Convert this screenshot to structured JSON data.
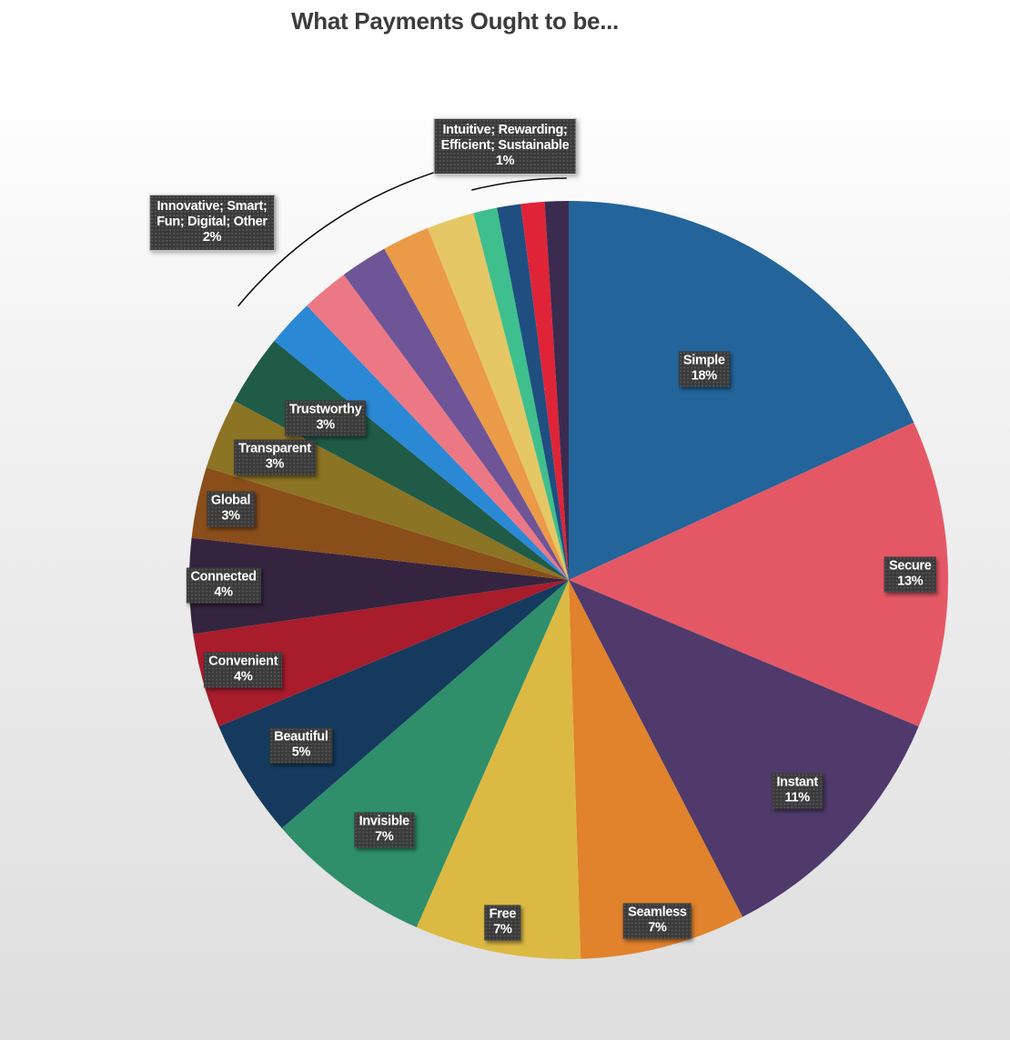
{
  "chart_data": {
    "type": "pie",
    "title": "What Payments Ought to be...",
    "slices": [
      {
        "name": "Simple",
        "label": "Simple",
        "value_label": "18%",
        "value": 18,
        "color": "#23649a"
      },
      {
        "name": "Secure",
        "label": "Secure",
        "value_label": "13%",
        "value": 13,
        "color": "#e45866"
      },
      {
        "name": "Instant",
        "label": "Instant",
        "value_label": "11%",
        "value": 11,
        "color": "#4f3a6b"
      },
      {
        "name": "Seamless",
        "label": "Seamless",
        "value_label": "7%",
        "value": 7,
        "color": "#e1822d"
      },
      {
        "name": "Free",
        "label": "Free",
        "value_label": "7%",
        "value": 7,
        "color": "#dcb943"
      },
      {
        "name": "Invisible",
        "label": "Invisible",
        "value_label": "7%",
        "value": 7,
        "color": "#2f8f6b"
      },
      {
        "name": "Beautiful",
        "label": "Beautiful",
        "value_label": "5%",
        "value": 5,
        "color": "#163a5e"
      },
      {
        "name": "Convenient",
        "label": "Convenient",
        "value_label": "4%",
        "value": 4,
        "color": "#a81c2c"
      },
      {
        "name": "Connected",
        "label": "Connected",
        "value_label": "4%",
        "value": 4,
        "color": "#35243f"
      },
      {
        "name": "Global",
        "label": "Global",
        "value_label": "3%",
        "value": 3,
        "color": "#8a4e1a"
      },
      {
        "name": "Transparent",
        "label": "Transparent",
        "value_label": "3%",
        "value": 3,
        "color": "#8c7425"
      },
      {
        "name": "Trustworthy",
        "label": "Trustworthy",
        "value_label": "3%",
        "value": 3,
        "color": "#1f5b47"
      },
      {
        "name": "Innovative",
        "value": 2,
        "color": "#2b88d4"
      },
      {
        "name": "Smart",
        "value": 2,
        "color": "#ec7885"
      },
      {
        "name": "Fun",
        "value": 2,
        "color": "#6e5597"
      },
      {
        "name": "Digital",
        "value": 2,
        "color": "#eb9a48"
      },
      {
        "name": "Other",
        "value": 2,
        "color": "#e5c865"
      },
      {
        "name": "Intuitive",
        "value": 1,
        "color": "#3fbf8d"
      },
      {
        "name": "Rewarding",
        "value": 1,
        "color": "#1e4f80"
      },
      {
        "name": "Efficient",
        "value": 1,
        "color": "#df2438"
      },
      {
        "name": "Sustainable",
        "value": 1,
        "color": "#3b2b4f"
      }
    ],
    "group_labels": [
      {
        "names": [
          "Innovative; Smart;",
          "Fun; Digital; Other"
        ],
        "value_label": "2%",
        "slices": [
          "Innovative",
          "Smart",
          "Fun",
          "Digital",
          "Other"
        ]
      },
      {
        "names": [
          "Intuitive; Rewarding;",
          "Efficient; Sustainable"
        ],
        "value_label": "1%",
        "slices": [
          "Intuitive",
          "Rewarding",
          "Efficient",
          "Sustainable"
        ]
      }
    ],
    "start_angle": "12 o'clock",
    "direction": "clockwise",
    "legend": "none"
  }
}
